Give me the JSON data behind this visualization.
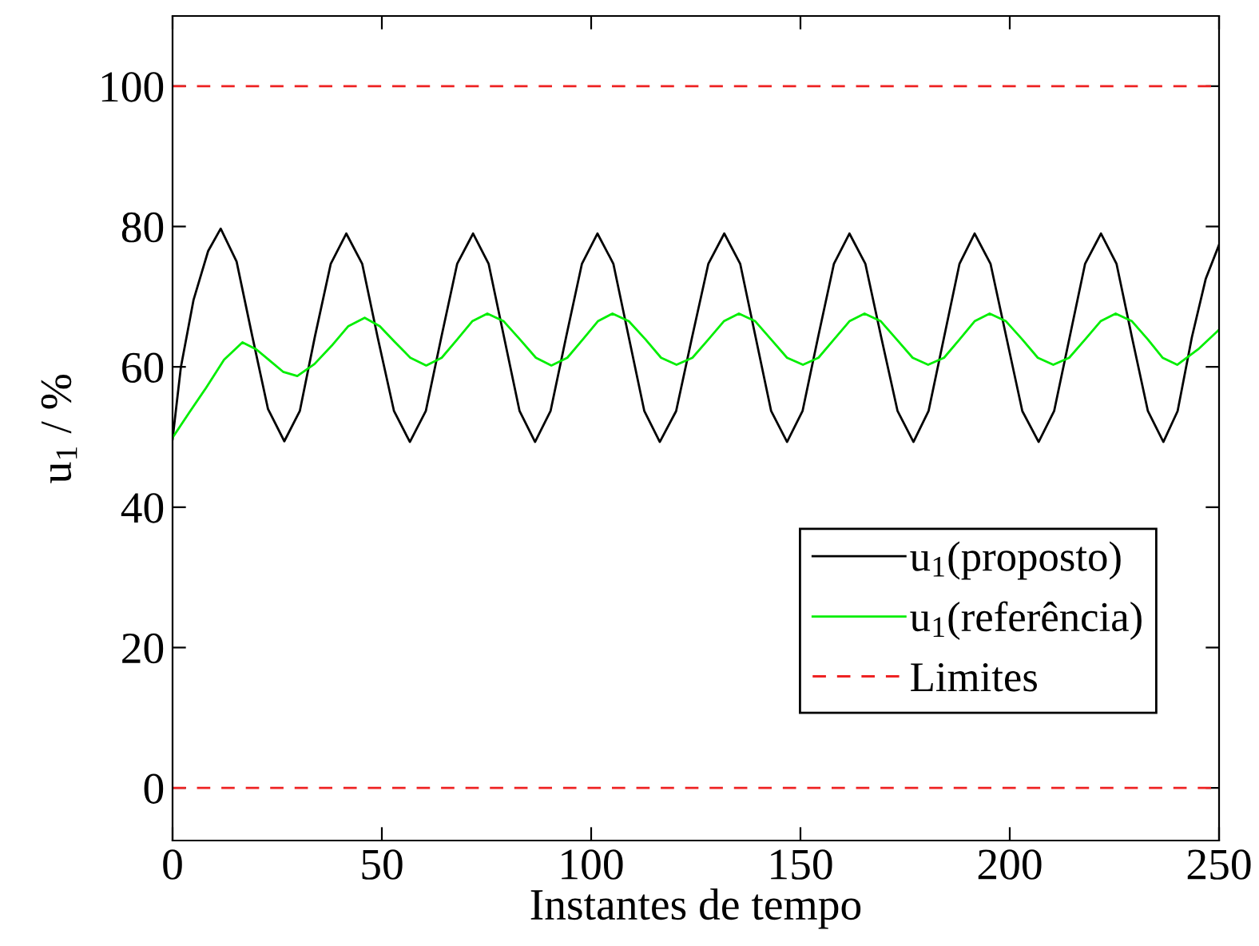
{
  "chart_data": {
    "type": "line",
    "xlabel": "Instantes de tempo",
    "ylabel": "u$_{1}$ / %",
    "xlim": [
      0,
      250
    ],
    "xticks": [
      0,
      50,
      100,
      150,
      200,
      250
    ],
    "ylim": [
      -7.5,
      110
    ],
    "yticks": [
      0,
      20,
      40,
      60,
      80,
      100
    ],
    "grid": false,
    "legend": "bottom right",
    "marker": "none",
    "line_style": "solid",
    "series": [
      {
        "name": "u$_{1}$(proposto)",
        "color": "#000000",
        "x": [
          0,
          2,
          5,
          8.5,
          11.5,
          15.3,
          19,
          22.8,
          26.7,
          30.4,
          34,
          37.8,
          41.5,
          45.3,
          49,
          52.9,
          56.7,
          60.5,
          64.2,
          68,
          71.8,
          75.5,
          79.2,
          82.9,
          86.6,
          90.3,
          94,
          97.8,
          101.5,
          105.3,
          109,
          112.7,
          116.4,
          120.3,
          124.1,
          128,
          131.8,
          135.6,
          139.3,
          143,
          146.8,
          150.5,
          154.2,
          158,
          161.7,
          165.5,
          169.3,
          173.2,
          177,
          180.6,
          184.3,
          188,
          191.6,
          195.4,
          199.2,
          203,
          206.9,
          210.6,
          214.3,
          218,
          221.8,
          225.5,
          229.2,
          233,
          236.7,
          240.1,
          243.5,
          246.8,
          250
        ],
        "values": [
          49.7,
          60,
          69.5,
          76.5,
          79.7,
          75.0,
          64.5,
          54,
          49.4,
          53.7,
          64.3,
          74.7,
          79,
          74.7,
          64.2,
          53.7,
          49.3,
          53.7,
          64.2,
          74.7,
          79,
          74.7,
          64.2,
          53.7,
          49.3,
          53.7,
          64.2,
          74.7,
          79,
          74.7,
          64.2,
          53.7,
          49.3,
          53.7,
          64.2,
          74.7,
          79,
          74.7,
          64.2,
          53.7,
          49.3,
          53.7,
          64.2,
          74.7,
          79,
          74.7,
          64.2,
          53.7,
          49.3,
          53.7,
          64.2,
          74.7,
          79,
          74.7,
          64.2,
          53.7,
          49.3,
          53.7,
          64.2,
          74.7,
          79,
          74.7,
          64.2,
          53.7,
          49.3,
          53.7,
          64.2,
          72.5,
          77.4
        ]
      },
      {
        "name": "u$_{1}$(referência)",
        "color": "#00ee00",
        "x": [
          0,
          4,
          8,
          12.3,
          16.7,
          20,
          23,
          26.4,
          29.8,
          33.9,
          38,
          42,
          45.9,
          49.5,
          53,
          56.8,
          60.6,
          64.3,
          68,
          71.6,
          75.2,
          79.1,
          83,
          86.8,
          90.5,
          94.3,
          98,
          101.6,
          105.1,
          109,
          113,
          116.7,
          120.4,
          124.2,
          128,
          131.7,
          135.3,
          139.2,
          143,
          146.8,
          150.6,
          154.3,
          158,
          161.7,
          165.3,
          169.2,
          173,
          176.8,
          180.5,
          184.3,
          188,
          191.6,
          195.2,
          199.1,
          203,
          206.7,
          210.4,
          214.2,
          218,
          221.7,
          225.3,
          229.2,
          233,
          236.5,
          240,
          245,
          250
        ],
        "values": [
          49.9,
          53.5,
          57,
          61,
          63.5,
          62.5,
          61,
          59.3,
          58.7,
          60.4,
          63,
          65.8,
          67.0,
          65.8,
          63.6,
          61.3,
          60.2,
          61.3,
          63.9,
          66.5,
          67.6,
          66.5,
          63.9,
          61.3,
          60.2,
          61.3,
          63.9,
          66.5,
          67.6,
          66.5,
          63.9,
          61.3,
          60.3,
          61.3,
          63.9,
          66.5,
          67.6,
          66.5,
          63.9,
          61.3,
          60.3,
          61.3,
          63.9,
          66.5,
          67.6,
          66.5,
          63.9,
          61.3,
          60.3,
          61.3,
          63.9,
          66.5,
          67.6,
          66.5,
          63.9,
          61.3,
          60.3,
          61.3,
          63.9,
          66.5,
          67.6,
          66.5,
          63.9,
          61.3,
          60.3,
          62.5,
          65.3
        ]
      }
    ],
    "ref_lines": [
      {
        "axis": "y",
        "value": 100,
        "label": "Limites",
        "color": "#ee2222",
        "line_style": "dashed"
      },
      {
        "axis": "y",
        "value": 0,
        "color": "#ee2222",
        "line_style": "dashed"
      }
    ]
  }
}
